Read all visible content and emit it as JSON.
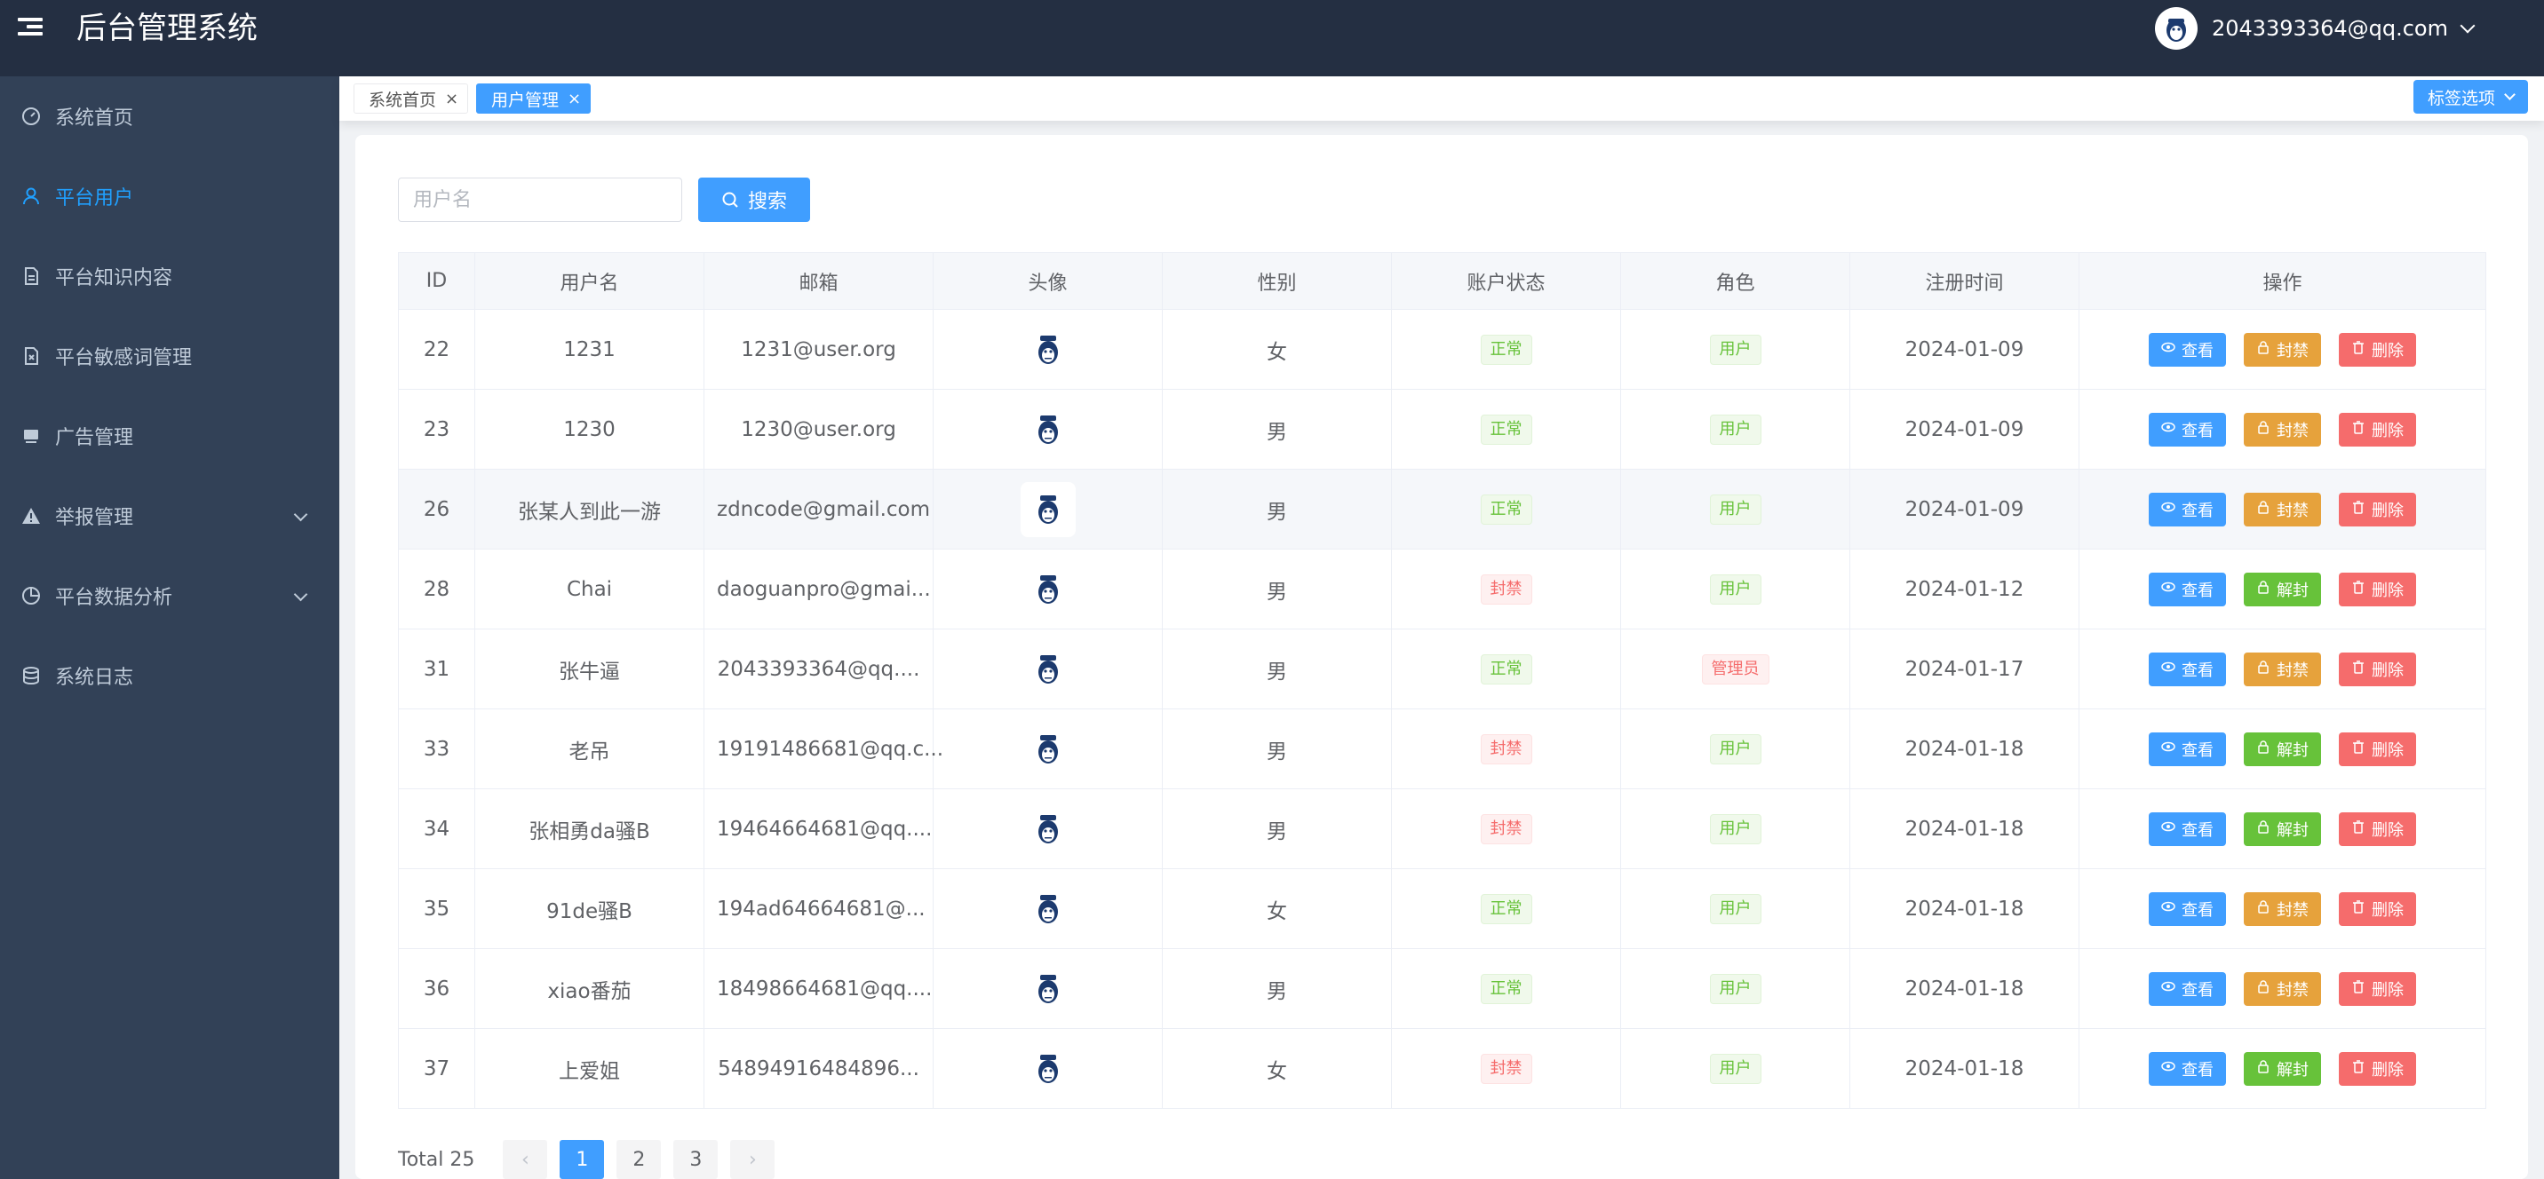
{
  "header": {
    "title": "后台管理系统",
    "user_email": "2043393364@qq.com"
  },
  "sidebar": {
    "items": [
      {
        "label": "系统首页",
        "icon": "dashboard-icon",
        "active": false,
        "has_submenu": false
      },
      {
        "label": "平台用户",
        "icon": "user-icon",
        "active": true,
        "has_submenu": false
      },
      {
        "label": "平台知识内容",
        "icon": "document-icon",
        "active": false,
        "has_submenu": false
      },
      {
        "label": "平台敏感词管理",
        "icon": "file-x-icon",
        "active": false,
        "has_submenu": false
      },
      {
        "label": "广告管理",
        "icon": "monitor-icon",
        "active": false,
        "has_submenu": false
      },
      {
        "label": "举报管理",
        "icon": "warning-icon",
        "active": false,
        "has_submenu": true
      },
      {
        "label": "平台数据分析",
        "icon": "pie-chart-icon",
        "active": false,
        "has_submenu": true
      },
      {
        "label": "系统日志",
        "icon": "database-icon",
        "active": false,
        "has_submenu": false
      }
    ]
  },
  "tags": {
    "items": [
      {
        "label": "系统首页",
        "active": false
      },
      {
        "label": "用户管理",
        "active": true
      }
    ],
    "options_label": "标签选项"
  },
  "search": {
    "placeholder": "用户名",
    "value": "",
    "button_label": "搜索"
  },
  "table": {
    "columns": [
      "ID",
      "用户名",
      "邮箱",
      "头像",
      "性别",
      "账户状态",
      "角色",
      "注册时间",
      "操作"
    ],
    "rows": [
      {
        "id": "22",
        "username": "1231",
        "email": "1231@user.org",
        "gender": "女",
        "status": "正常",
        "role": "用户",
        "registered": "2024-01-09",
        "toggle_label": "封禁"
      },
      {
        "id": "23",
        "username": "1230",
        "email": "1230@user.org",
        "gender": "男",
        "status": "正常",
        "role": "用户",
        "registered": "2024-01-09",
        "toggle_label": "封禁"
      },
      {
        "id": "26",
        "username": "张某人到此一游",
        "email": "zdncode@gmail.com",
        "gender": "男",
        "status": "正常",
        "role": "用户",
        "registered": "2024-01-09",
        "toggle_label": "封禁"
      },
      {
        "id": "28",
        "username": "Chai",
        "email": "daoguanpro@gmai...",
        "gender": "男",
        "status": "封禁",
        "role": "用户",
        "registered": "2024-01-12",
        "toggle_label": "解封"
      },
      {
        "id": "31",
        "username": "张牛逼",
        "email": "2043393364@qq....",
        "gender": "男",
        "status": "正常",
        "role": "管理员",
        "registered": "2024-01-17",
        "toggle_label": "封禁"
      },
      {
        "id": "33",
        "username": "老吊",
        "email": "19191486681@qq.c...",
        "gender": "男",
        "status": "封禁",
        "role": "用户",
        "registered": "2024-01-18",
        "toggle_label": "解封"
      },
      {
        "id": "34",
        "username": "张相勇da骚B",
        "email": "19464664681@qq....",
        "gender": "男",
        "status": "封禁",
        "role": "用户",
        "registered": "2024-01-18",
        "toggle_label": "解封"
      },
      {
        "id": "35",
        "username": "91de骚B",
        "email": "194ad64664681@...",
        "gender": "女",
        "status": "正常",
        "role": "用户",
        "registered": "2024-01-18",
        "toggle_label": "封禁"
      },
      {
        "id": "36",
        "username": "xiao番茄",
        "email": "18498664681@qq....",
        "gender": "男",
        "status": "正常",
        "role": "用户",
        "registered": "2024-01-18",
        "toggle_label": "封禁"
      },
      {
        "id": "37",
        "username": "上爱姐",
        "email": "54894916484896...",
        "gender": "女",
        "status": "封禁",
        "role": "用户",
        "registered": "2024-01-18",
        "toggle_label": "解封"
      }
    ],
    "view_label": "查看",
    "delete_label": "删除"
  },
  "pagination": {
    "total_label": "Total 25",
    "pages": [
      "1",
      "2",
      "3"
    ],
    "current": "1"
  },
  "colors": {
    "header_bg": "#242f42",
    "sidebar_bg": "#324157",
    "accent": "#409eff",
    "success": "#67c23a",
    "warning": "#e6a23c",
    "danger": "#f56c6c"
  }
}
